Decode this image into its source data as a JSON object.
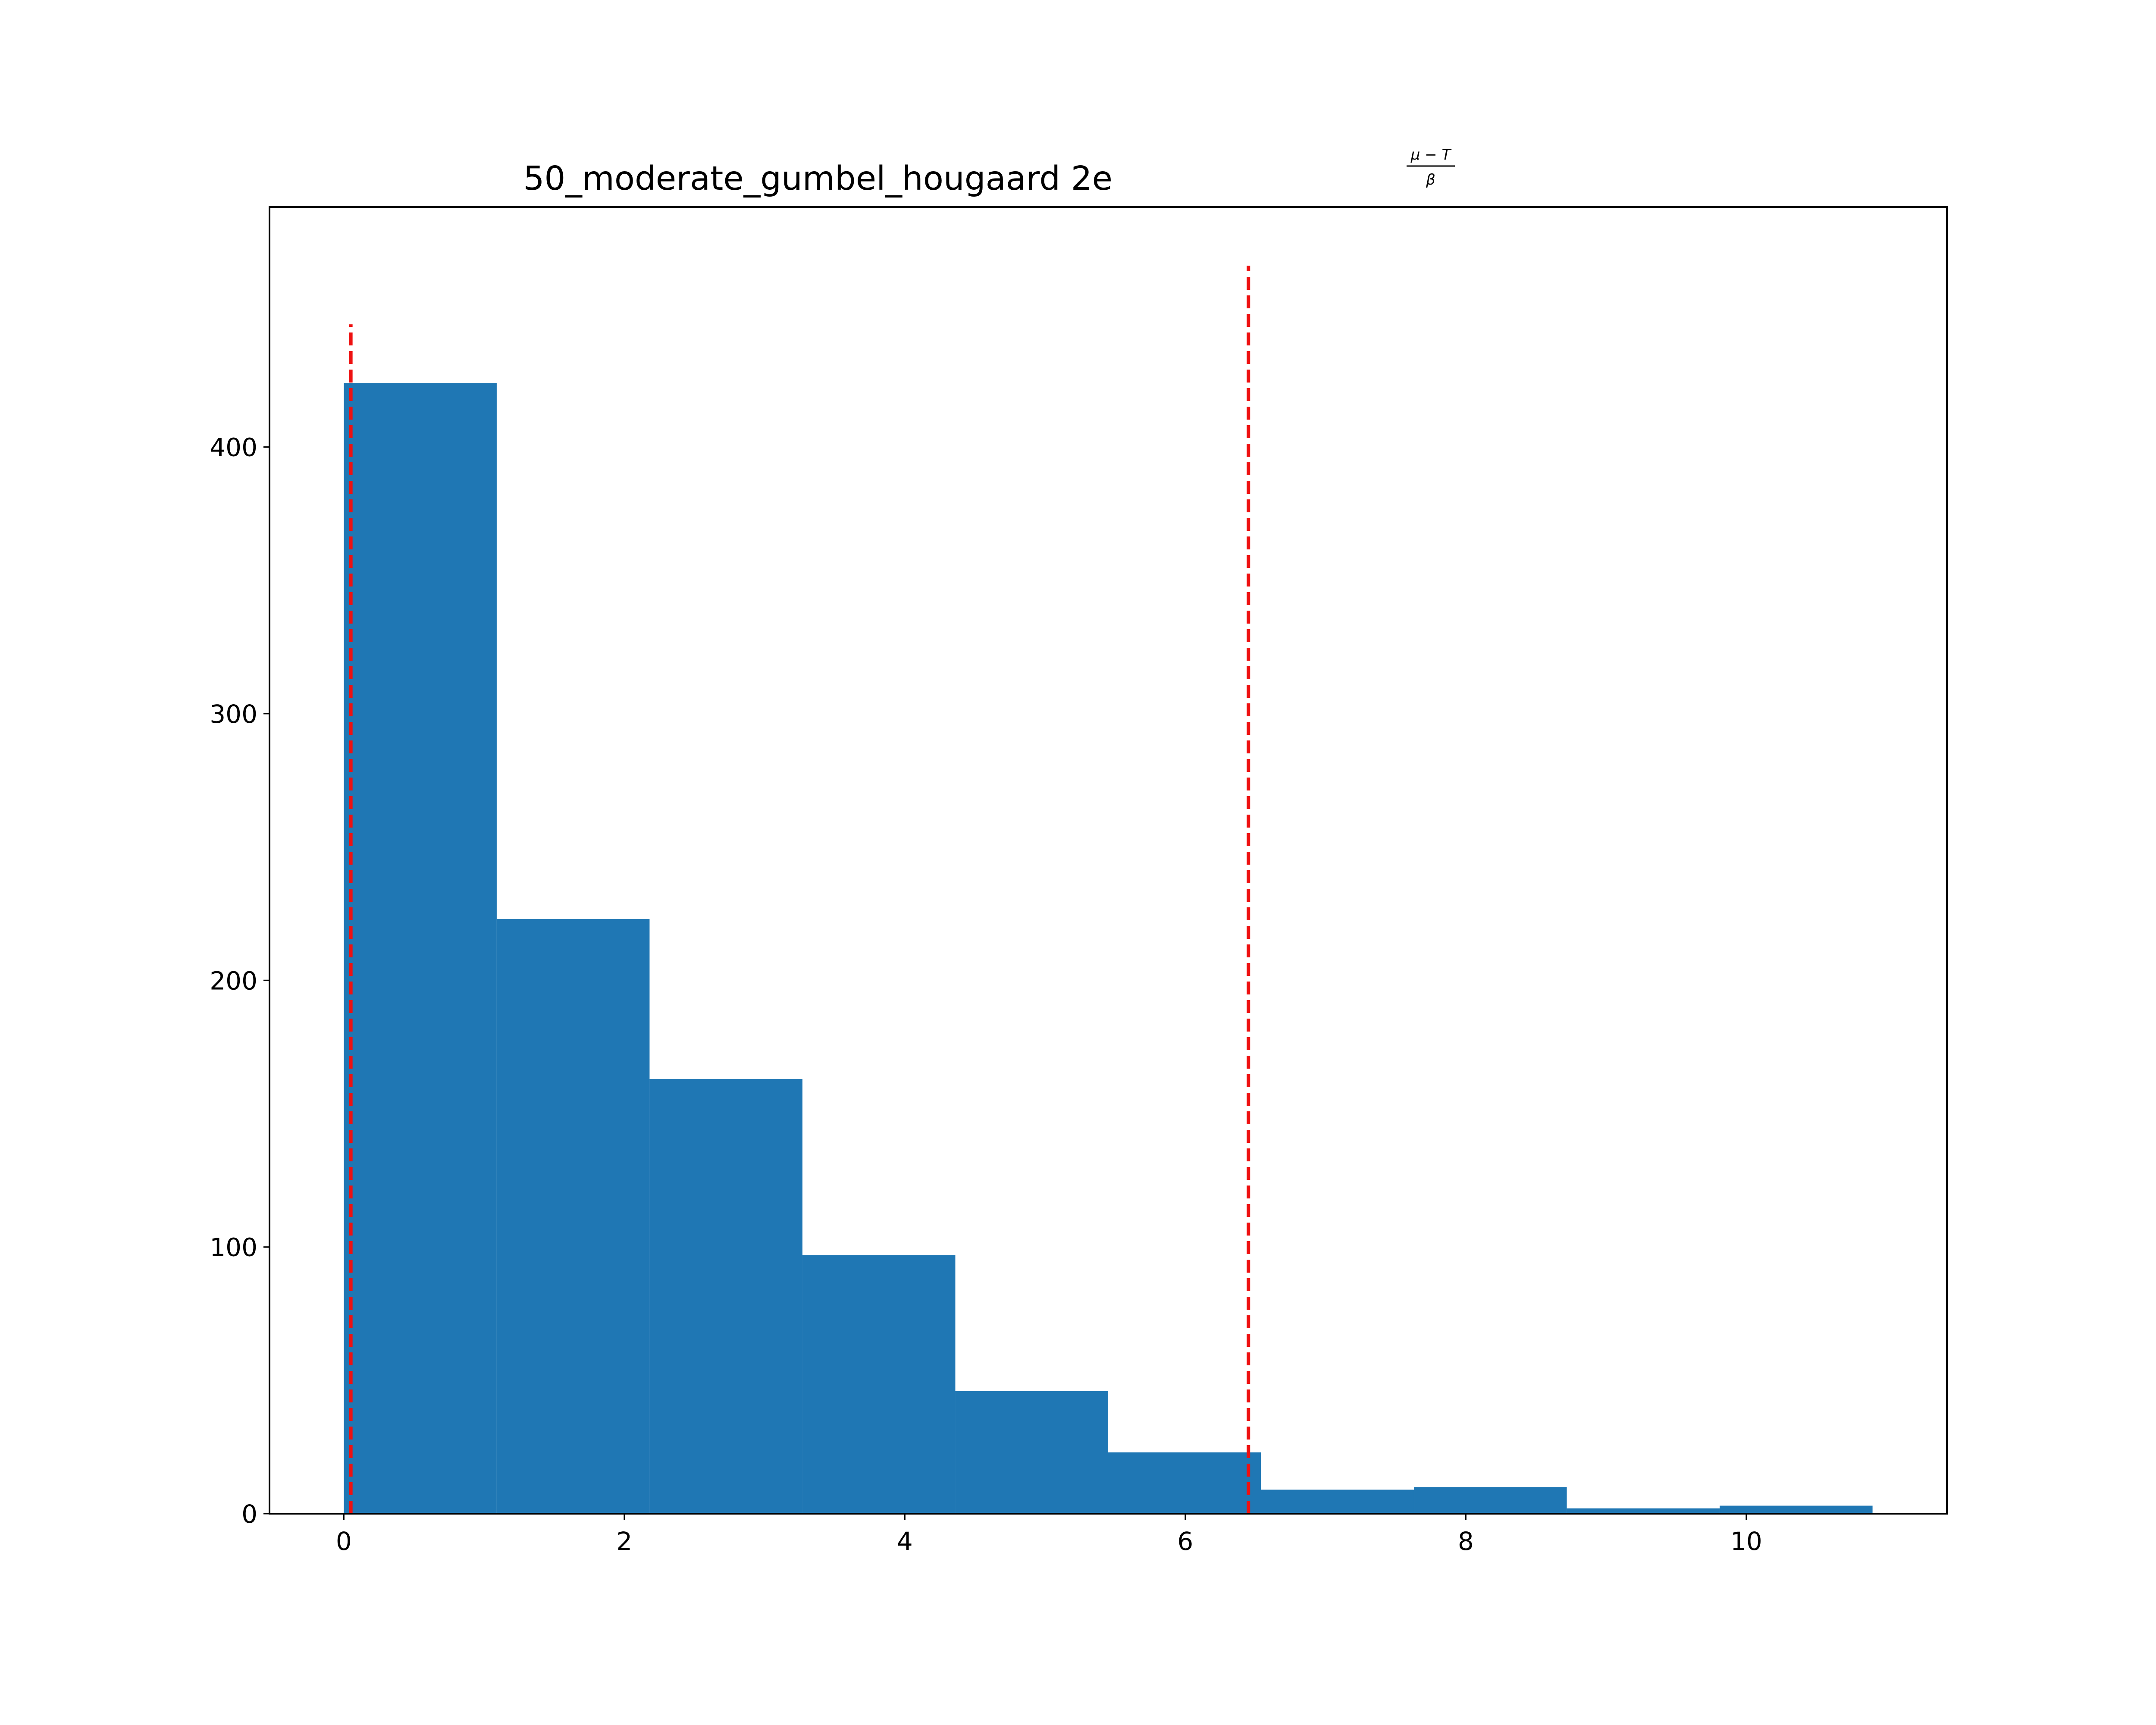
{
  "chart_data": {
    "type": "bar",
    "title": "50_moderate_gumbel_hougaard 2e",
    "title_exponent": {
      "numerator": "μ − T",
      "denominator": "β"
    },
    "xlabel": "",
    "ylabel": "",
    "xlim": [
      -0.53,
      11.43
    ],
    "ylim": [
      0,
      490
    ],
    "x_ticks": [
      0,
      2,
      4,
      6,
      8,
      10
    ],
    "x_tick_labels": [
      "0",
      "2",
      "4",
      "6",
      "8",
      "10"
    ],
    "y_ticks": [
      0,
      100,
      200,
      300,
      400
    ],
    "y_tick_labels": [
      "0",
      "100",
      "200",
      "300",
      "400"
    ],
    "grid": false,
    "bars": [
      {
        "x0": 0.0,
        "x1": 1.09,
        "value": 424
      },
      {
        "x0": 1.09,
        "x1": 2.18,
        "value": 223
      },
      {
        "x0": 2.18,
        "x1": 3.27,
        "value": 163
      },
      {
        "x0": 3.27,
        "x1": 4.36,
        "value": 97
      },
      {
        "x0": 4.36,
        "x1": 5.45,
        "value": 46
      },
      {
        "x0": 5.45,
        "x1": 6.54,
        "value": 23
      },
      {
        "x0": 6.54,
        "x1": 7.63,
        "value": 9
      },
      {
        "x0": 7.63,
        "x1": 8.72,
        "value": 10
      },
      {
        "x0": 8.72,
        "x1": 9.81,
        "value": 2
      },
      {
        "x0": 9.81,
        "x1": 10.9,
        "value": 3
      }
    ],
    "reference_lines": [
      {
        "x": 0.05,
        "y_top": 446
      },
      {
        "x": 6.45,
        "y_top": 468
      }
    ],
    "colors": {
      "bar": "#1f77b4",
      "reference_line": "#ee1111",
      "axes": "#000000"
    }
  }
}
